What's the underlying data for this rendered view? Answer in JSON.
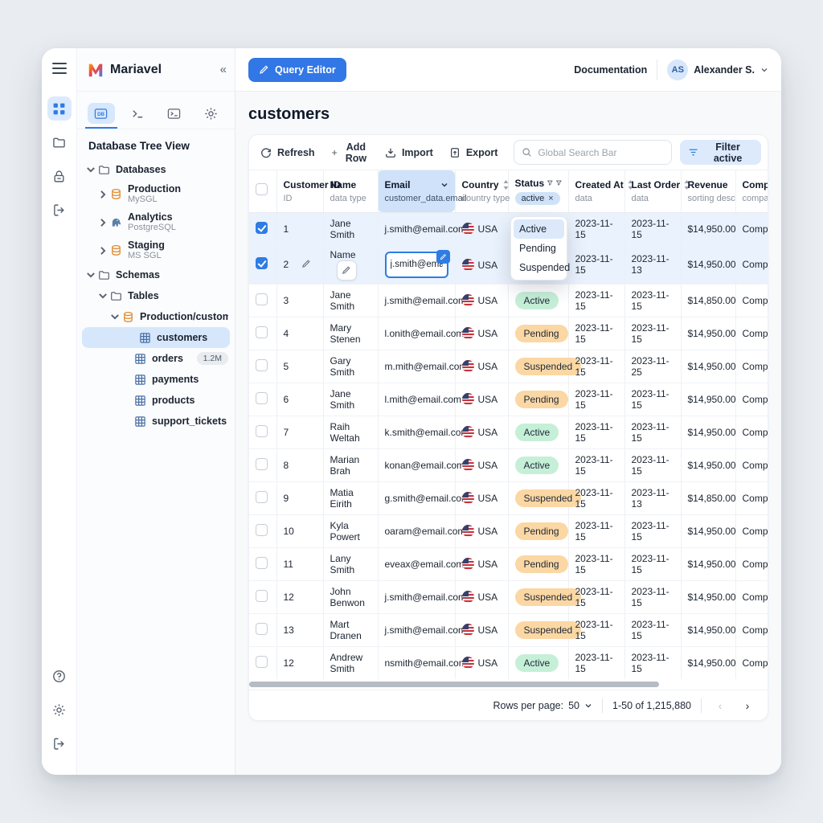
{
  "brand": {
    "name": "Mariavel",
    "collapse_icon": "«"
  },
  "rail": {
    "top_items": [
      {
        "icon": "apps-grid-icon",
        "active": true
      },
      {
        "icon": "folder-icon",
        "active": false
      },
      {
        "icon": "lock-icon",
        "active": false
      },
      {
        "icon": "logout-icon",
        "active": false
      }
    ],
    "bottom_items": [
      {
        "icon": "help-icon"
      },
      {
        "icon": "gear-icon"
      },
      {
        "icon": "logout-icon"
      }
    ]
  },
  "sidebar": {
    "tabs": [
      {
        "icon": "database-panel-icon",
        "active": true
      },
      {
        "icon": "terminal-prompt-icon",
        "active": false
      },
      {
        "icon": "terminal-box-icon",
        "active": false
      },
      {
        "icon": "gear-icon",
        "active": false
      }
    ],
    "tree_title": "Database Tree View",
    "tree": [
      {
        "level": 0,
        "expander": "down",
        "icon": "folder",
        "label": "Databases"
      },
      {
        "level": 1,
        "expander": "right",
        "icon": "db",
        "label": "Production",
        "sublabel": "MySGL"
      },
      {
        "level": 1,
        "expander": "right",
        "icon": "pg",
        "label": "Analytics",
        "sublabel": "PostgreSQL"
      },
      {
        "level": 1,
        "expander": "right",
        "icon": "db",
        "label": "Staging",
        "sublabel": "MS SGL"
      },
      {
        "level": 0,
        "expander": "down",
        "icon": "folder",
        "label": "Schemas"
      },
      {
        "level": 1,
        "expander": "down",
        "icon": "folder",
        "label": "Tables"
      },
      {
        "level": 2,
        "expander": "down",
        "icon": "db",
        "label": "Production/customer_data"
      },
      {
        "level": 3,
        "expander": "none",
        "icon": "table",
        "label": "customers",
        "selected": true
      },
      {
        "level": 3,
        "expander": "none",
        "icon": "table",
        "label": "orders",
        "badge": "1.2M"
      },
      {
        "level": 3,
        "expander": "none",
        "icon": "table",
        "label": "payments"
      },
      {
        "level": 3,
        "expander": "none",
        "icon": "table",
        "label": "products"
      },
      {
        "level": 3,
        "expander": "none",
        "icon": "table",
        "label": "support_tickets"
      }
    ]
  },
  "header": {
    "query_editor_label": "Query Editor",
    "documentation_label": "Documentation",
    "avatar_initials": "AS",
    "user_name": "Alexander S."
  },
  "page": {
    "title": "customers"
  },
  "toolbar": {
    "refresh_label": "Refresh",
    "add_row_label": "Add Row",
    "import_label": "Import",
    "export_label": "Export",
    "search_placeholder": "Global Search Bar",
    "filter_label": "Filter active"
  },
  "table": {
    "columns": [
      {
        "label": "",
        "sublabel": ""
      },
      {
        "label": "Customer ID",
        "sublabel": "ID"
      },
      {
        "label": "Name",
        "sublabel": "data type"
      },
      {
        "label": "Email",
        "sublabel": "customer_data.email"
      },
      {
        "label": "Country",
        "sublabel": "country type"
      },
      {
        "label": "Status",
        "chip": "active"
      },
      {
        "label": "Created At",
        "sublabel": "data"
      },
      {
        "label": "Last Order",
        "sublabel": "data"
      },
      {
        "label": "Revenue",
        "sublabel": "sorting desc"
      },
      {
        "label": "Company",
        "sublabel": "company"
      }
    ],
    "rows": [
      {
        "num": "1",
        "name": "Jane Smith",
        "email": "j.smith@email.com",
        "country": "USA",
        "status": "",
        "created": "2023-11-15",
        "last_order": "2023-11-15",
        "revenue": "$14,950.00",
        "company": "Company",
        "checked": true,
        "selected": true
      },
      {
        "num": "2",
        "name": "Name",
        "email": "j.smith@email.com",
        "country": "USA",
        "status": "",
        "created": "2023-11-15",
        "last_order": "2023-11-13",
        "revenue": "$14,950.00",
        "company": "Company",
        "checked": true,
        "selected": true,
        "editing": true
      },
      {
        "num": "3",
        "name": "Jane Smith",
        "email": "j.smith@email.com",
        "country": "USA",
        "status": "Active",
        "created": "2023-11-15",
        "last_order": "2023-11-15",
        "revenue": "$14,850.00",
        "company": "Company"
      },
      {
        "num": "4",
        "name": "Mary Stenen",
        "email": "l.onith@email.com",
        "country": "USA",
        "status": "Pending",
        "created": "2023-11-15",
        "last_order": "2023-11-15",
        "revenue": "$14,950.00",
        "company": "Company"
      },
      {
        "num": "5",
        "name": "Gary Smith",
        "email": "m.mith@email.com",
        "country": "USA",
        "status": "Suspended",
        "created": "2023-11-15",
        "last_order": "2023-11-25",
        "revenue": "$14,950.00",
        "company": "Company"
      },
      {
        "num": "6",
        "name": "Jane Smith",
        "email": "l.mith@email.com",
        "country": "USA",
        "status": "Pending",
        "created": "2023-11-15",
        "last_order": "2023-11-15",
        "revenue": "$14,950.00",
        "company": "Company"
      },
      {
        "num": "7",
        "name": "Raih Weltah",
        "email": "k.smith@email.com",
        "country": "USA",
        "status": "Active",
        "created": "2023-11-15",
        "last_order": "2023-11-15",
        "revenue": "$14,950.00",
        "company": "Company"
      },
      {
        "num": "8",
        "name": "Marian Brah",
        "email": "konan@email.com",
        "country": "USA",
        "status": "Active",
        "created": "2023-11-15",
        "last_order": "2023-11-15",
        "revenue": "$14,950.00",
        "company": "Company"
      },
      {
        "num": "9",
        "name": "Matia Eirith",
        "email": "g.smith@email.com",
        "country": "USA",
        "status": "Suspended",
        "created": "2023-11-15",
        "last_order": "2023-11-13",
        "revenue": "$14,850.00",
        "company": "Company"
      },
      {
        "num": "10",
        "name": "Kyla Powert",
        "email": "oaram@email.com",
        "country": "USA",
        "status": "Pending",
        "created": "2023-11-15",
        "last_order": "2023-11-15",
        "revenue": "$14,950.00",
        "company": "Company"
      },
      {
        "num": "11",
        "name": "Lany Smith",
        "email": "eveax@email.com",
        "country": "USA",
        "status": "Pending",
        "created": "2023-11-15",
        "last_order": "2023-11-15",
        "revenue": "$14,950.00",
        "company": "Company"
      },
      {
        "num": "12",
        "name": "John Benwon",
        "email": "j.smith@email.com",
        "country": "USA",
        "status": "Suspended",
        "created": "2023-11-15",
        "last_order": "2023-11-15",
        "revenue": "$14,950.00",
        "company": "Company"
      },
      {
        "num": "13",
        "name": "Mart Dranen",
        "email": "j.smith@email.com",
        "country": "USA",
        "status": "Suspended",
        "created": "2023-11-15",
        "last_order": "2023-11-15",
        "revenue": "$14,950.00",
        "company": "Company"
      },
      {
        "num": "12",
        "name": "Andrew Smith",
        "email": "nsmith@email.com",
        "country": "USA",
        "status": "Active",
        "created": "2023-11-15",
        "last_order": "2023-11-15",
        "revenue": "$14,950.00",
        "company": "Company"
      }
    ]
  },
  "status_dropdown": {
    "options": [
      "Active",
      "Pending",
      "Suspended"
    ],
    "highlighted": "Active"
  },
  "footer": {
    "rows_per_page_label": "Rows per page:",
    "rows_per_page_value": "50",
    "range_text": "1-50 of 1,215,880"
  },
  "colors": {
    "accent_blue": "#3277e6",
    "active_pill": "#c6efd8",
    "warn_pill": "#fbd7a4",
    "selected_row": "#e9f2fd",
    "email_header": "#cfe2f9"
  }
}
